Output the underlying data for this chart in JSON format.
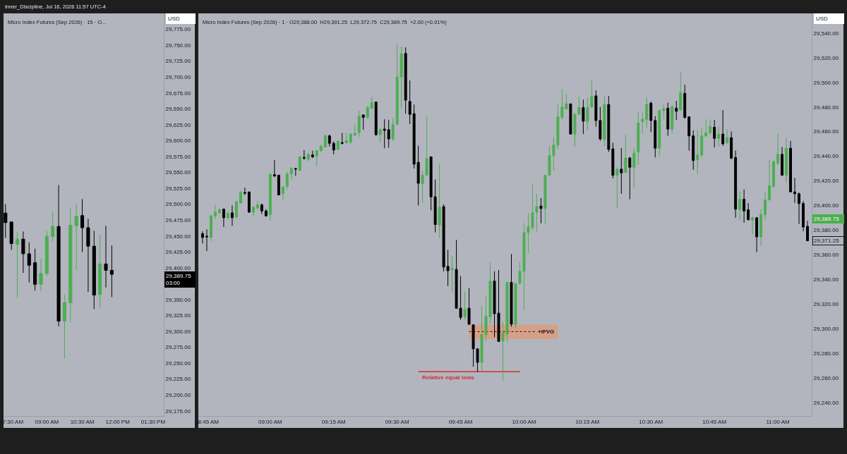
{
  "chart_data": [
    {
      "type": "candlestick",
      "title": "Micro Index Futures (Sep 2026) · 15 · O...",
      "x": [
        "2026-07-16T07:15",
        "2026-07-16T07:30",
        "2026-07-16T07:45",
        "2026-07-16T08:00",
        "2026-07-16T08:15",
        "2026-07-16T08:30",
        "2026-07-16T08:45",
        "2026-07-16T09:00",
        "2026-07-16T09:15",
        "2026-07-16T09:30",
        "2026-07-16T09:45",
        "2026-07-16T10:00",
        "2026-07-16T10:15",
        "2026-07-16T10:30",
        "2026-07-16T10:45",
        "2026-07-16T11:00",
        "2026-07-16T11:15",
        "2026-07-16T11:30",
        "2026-07-16T11:45"
      ],
      "ohlc": [
        [
          29486,
          29500,
          29447,
          29471
        ],
        [
          29472,
          29472,
          29428,
          29438
        ],
        [
          29437,
          29456,
          29353,
          29445
        ],
        [
          29445,
          29457,
          29392,
          29422
        ],
        [
          29422,
          29440,
          29377,
          29404
        ],
        [
          29408,
          29430,
          29364,
          29374
        ],
        [
          29374,
          29414,
          29363,
          29391
        ],
        [
          29391,
          29458,
          29387,
          29449
        ],
        [
          29449,
          29488,
          29442,
          29465
        ],
        [
          29465,
          29530,
          29308,
          29316
        ],
        [
          29316,
          29358,
          29257,
          29345
        ],
        [
          29345,
          29494,
          29314,
          29467
        ],
        [
          29466,
          29500,
          29397,
          29481
        ],
        [
          29482,
          29508,
          29425,
          29463
        ],
        [
          29463,
          29477,
          29362,
          29434
        ],
        [
          29434,
          29458,
          29335,
          29357
        ],
        [
          29358,
          29452,
          29336,
          29406
        ],
        [
          29406,
          29466,
          29369,
          29396
        ],
        [
          29396,
          29435,
          29354,
          29389.75
        ]
      ],
      "colors": [
        "#000000",
        "#000000",
        "#4caf50",
        "#000000",
        "#000000",
        "#000000",
        "#4caf50",
        "#4caf50",
        "#4caf50",
        "#000000",
        "#4caf50",
        "#4caf50",
        "#4caf50",
        "#000000",
        "#000000",
        "#000000",
        "#4caf50",
        "#000000",
        "#000000"
      ],
      "xlim": [
        "2026-07-16T07:10",
        "2026-07-16T13:57"
      ],
      "xticks": [
        {
          "value": "2026-07-16T07:30",
          "label": "07:30 AM"
        },
        {
          "value": "2026-07-16T09:00",
          "label": "09:00 AM"
        },
        {
          "value": "2026-07-16T10:30",
          "label": "10:30 AM"
        },
        {
          "value": "2026-07-16T12:00",
          "label": "12:00 PM"
        },
        {
          "value": "2026-07-16T13:30",
          "label": "01:30 PM"
        }
      ],
      "ylim": [
        29167,
        29800
      ],
      "yticks": [
        {
          "value": 29175,
          "label": "29,175.00"
        },
        {
          "value": 29200,
          "label": "29,200.00"
        },
        {
          "value": 29225,
          "label": "29,225.00"
        },
        {
          "value": 29250,
          "label": "29,250.00"
        },
        {
          "value": 29275,
          "label": "29,275.00"
        },
        {
          "value": 29300,
          "label": "29,300.00"
        },
        {
          "value": 29325,
          "label": "29,325.00"
        },
        {
          "value": 29350,
          "label": "29,350.00"
        },
        {
          "value": 29400,
          "label": "29,400.00"
        },
        {
          "value": 29425,
          "label": "29,425.00"
        },
        {
          "value": 29450,
          "label": "29,450.00"
        },
        {
          "value": 29475,
          "label": "29,475.00"
        },
        {
          "value": 29500,
          "label": "29,500.00"
        },
        {
          "value": 29525,
          "label": "29,525.00"
        },
        {
          "value": 29550,
          "label": "29,550.00"
        },
        {
          "value": 29575,
          "label": "29,575.00"
        },
        {
          "value": 29600,
          "label": "29,600.00"
        },
        {
          "value": 29625,
          "label": "29,625.00"
        },
        {
          "value": 29650,
          "label": "29,650.00"
        },
        {
          "value": 29675,
          "label": "29,675.00"
        },
        {
          "value": 29700,
          "label": "29,700.00"
        },
        {
          "value": 29725,
          "label": "29,725.00"
        },
        {
          "value": 29750,
          "label": "29,750.00"
        },
        {
          "value": 29775,
          "label": "29,775.00"
        }
      ],
      "annotations": [
        "Inner_Discipline, Jul 16, 2026 11:57 UTC-4",
        "USD",
        "29,389.75\n03:00"
      ]
    },
    {
      "type": "candlestick",
      "title": "Micro Index Futures (Sep 2026) · 1 · O29,388.00  H29,391.25  L29,372.75  C29,389.75  +2.00 (+0.01%)",
      "x": [
        "2026-07-16T08:44",
        "2026-07-16T08:45",
        "2026-07-16T08:46",
        "2026-07-16T08:47",
        "2026-07-16T08:48",
        "2026-07-16T08:49",
        "2026-07-16T08:50",
        "2026-07-16T08:51",
        "2026-07-16T08:52",
        "2026-07-16T08:53",
        "2026-07-16T08:54",
        "2026-07-16T08:55",
        "2026-07-16T08:56",
        "2026-07-16T08:57",
        "2026-07-16T08:58",
        "2026-07-16T08:59",
        "2026-07-16T09:00",
        "2026-07-16T09:01",
        "2026-07-16T09:02",
        "2026-07-16T09:03",
        "2026-07-16T09:04",
        "2026-07-16T09:05",
        "2026-07-16T09:06",
        "2026-07-16T09:07",
        "2026-07-16T09:08",
        "2026-07-16T09:09",
        "2026-07-16T09:10",
        "2026-07-16T09:11",
        "2026-07-16T09:12",
        "2026-07-16T09:13",
        "2026-07-16T09:14",
        "2026-07-16T09:15",
        "2026-07-16T09:16",
        "2026-07-16T09:17",
        "2026-07-16T09:18",
        "2026-07-16T09:19",
        "2026-07-16T09:20",
        "2026-07-16T09:21",
        "2026-07-16T09:22",
        "2026-07-16T09:23",
        "2026-07-16T09:24",
        "2026-07-16T09:25",
        "2026-07-16T09:26",
        "2026-07-16T09:27",
        "2026-07-16T09:28",
        "2026-07-16T09:29",
        "2026-07-16T09:30",
        "2026-07-16T09:31",
        "2026-07-16T09:32",
        "2026-07-16T09:33",
        "2026-07-16T09:34",
        "2026-07-16T09:35",
        "2026-07-16T09:36",
        "2026-07-16T09:37",
        "2026-07-16T09:38",
        "2026-07-16T09:39",
        "2026-07-16T09:40",
        "2026-07-16T09:41",
        "2026-07-16T09:42",
        "2026-07-16T09:43",
        "2026-07-16T09:44",
        "2026-07-16T09:45",
        "2026-07-16T09:46",
        "2026-07-16T09:47",
        "2026-07-16T09:48",
        "2026-07-16T09:49",
        "2026-07-16T09:50",
        "2026-07-16T09:51",
        "2026-07-16T09:52",
        "2026-07-16T09:53",
        "2026-07-16T09:54",
        "2026-07-16T09:55",
        "2026-07-16T09:56",
        "2026-07-16T09:57",
        "2026-07-16T09:58",
        "2026-07-16T09:59",
        "2026-07-16T10:00",
        "2026-07-16T10:01",
        "2026-07-16T10:02",
        "2026-07-16T10:03",
        "2026-07-16T10:04",
        "2026-07-16T10:05",
        "2026-07-16T10:06",
        "2026-07-16T10:07",
        "2026-07-16T10:08",
        "2026-07-16T10:09",
        "2026-07-16T10:10",
        "2026-07-16T10:11",
        "2026-07-16T10:12",
        "2026-07-16T10:13",
        "2026-07-16T10:14",
        "2026-07-16T10:15",
        "2026-07-16T10:16",
        "2026-07-16T10:17",
        "2026-07-16T10:18",
        "2026-07-16T10:19",
        "2026-07-16T10:20",
        "2026-07-16T10:21",
        "2026-07-16T10:22",
        "2026-07-16T10:23",
        "2026-07-16T10:24",
        "2026-07-16T10:25",
        "2026-07-16T10:26",
        "2026-07-16T10:27",
        "2026-07-16T10:28",
        "2026-07-16T10:29",
        "2026-07-16T10:30",
        "2026-07-16T10:31",
        "2026-07-16T10:32",
        "2026-07-16T10:33",
        "2026-07-16T10:34",
        "2026-07-16T10:35",
        "2026-07-16T10:36",
        "2026-07-16T10:37",
        "2026-07-16T10:38",
        "2026-07-16T10:39",
        "2026-07-16T10:40",
        "2026-07-16T10:41",
        "2026-07-16T10:42",
        "2026-07-16T10:43",
        "2026-07-16T10:44",
        "2026-07-16T10:45",
        "2026-07-16T10:46",
        "2026-07-16T10:47",
        "2026-07-16T10:48",
        "2026-07-16T10:49",
        "2026-07-16T10:50",
        "2026-07-16T10:51",
        "2026-07-16T10:52",
        "2026-07-16T10:53",
        "2026-07-16T10:54",
        "2026-07-16T10:55",
        "2026-07-16T10:56",
        "2026-07-16T10:57",
        "2026-07-16T10:58",
        "2026-07-16T10:59",
        "2026-07-16T11:00",
        "2026-07-16T11:01",
        "2026-07-16T11:02",
        "2026-07-16T11:03",
        "2026-07-16T11:04",
        "2026-07-16T11:05",
        "2026-07-16T11:06",
        "2026-07-16T11:07"
      ],
      "ohlc": [
        [
          29377,
          29379,
          29369,
          29374
        ],
        [
          29375,
          29380.5,
          29363,
          29374.5
        ],
        [
          29374,
          29392.5,
          29371,
          29391.5
        ],
        [
          29391.5,
          29400.5,
          29389,
          29394.5
        ],
        [
          29394,
          29397.5,
          29393,
          29396.5
        ],
        [
          29397,
          29397.5,
          29382.5,
          29390
        ],
        [
          29390,
          29395,
          29388.5,
          29393.5
        ],
        [
          29394,
          29400,
          29383.5,
          29390
        ],
        [
          29390.5,
          29403.5,
          29390,
          29403
        ],
        [
          29402,
          29412,
          29401.5,
          29410.5
        ],
        [
          29410.5,
          29414.5,
          29408.5,
          29410
        ],
        [
          29411,
          29411,
          29394,
          29394.5
        ],
        [
          29394.5,
          29399.5,
          29391,
          29398.5
        ],
        [
          29398,
          29404,
          29396.5,
          29400.5
        ],
        [
          29400.5,
          29401.5,
          29393,
          29395.5
        ],
        [
          29395.5,
          29397,
          29391,
          29391.5
        ],
        [
          29392.5,
          29425.5,
          29387.5,
          29425.5
        ],
        [
          29425,
          29437,
          29423,
          29424
        ],
        [
          29424.5,
          29425,
          29408.5,
          29408.5
        ],
        [
          29409.5,
          29415.5,
          29404,
          29415
        ],
        [
          29415.5,
          29427.5,
          29413,
          29425.5
        ],
        [
          29425.5,
          29431,
          29421,
          29430
        ],
        [
          29430,
          29430.5,
          29424,
          29429.5
        ],
        [
          29428.5,
          29440,
          29428,
          29439.5
        ],
        [
          29439,
          29445,
          29437,
          29438.5
        ],
        [
          29437.5,
          29442.5,
          29435.5,
          29441.5
        ],
        [
          29441,
          29444.5,
          29438.5,
          29439.5
        ],
        [
          29440,
          29445,
          29431.5,
          29444.5
        ],
        [
          29444.5,
          29449.5,
          29443.5,
          29448
        ],
        [
          29447.5,
          29457.5,
          29447,
          29456.5
        ],
        [
          29456.5,
          29457.5,
          29448,
          29450.5
        ],
        [
          29450.5,
          29452,
          29441.5,
          29445
        ],
        [
          29445.5,
          29453,
          29445,
          29452
        ],
        [
          29451,
          29459,
          29449.5,
          29450.5
        ],
        [
          29451,
          29459,
          29450,
          29452.5
        ],
        [
          29451.5,
          29458.5,
          29449.5,
          29458
        ],
        [
          29457,
          29465.5,
          29456.5,
          29458.5
        ],
        [
          29459,
          29477,
          29455.5,
          29472.5
        ],
        [
          29473.5,
          29474,
          29461.5,
          29471.5
        ],
        [
          29471.5,
          29481,
          29470.5,
          29479.5
        ],
        [
          29479,
          29488,
          29478,
          29483.5
        ],
        [
          29484,
          29484,
          29456.5,
          29457.5
        ],
        [
          29457.5,
          29463,
          29451,
          29461.5
        ],
        [
          29462,
          29470,
          29446.5,
          29461
        ],
        [
          29461.5,
          29469.5,
          29447,
          29454
        ],
        [
          29454,
          29471,
          29452.5,
          29465.5
        ],
        [
          29466,
          29531.5,
          29465.5,
          29504.5
        ],
        [
          29504.5,
          29529,
          29479,
          29523
        ],
        [
          29523.5,
          29528.5,
          29474.5,
          29485.5
        ],
        [
          29484.5,
          29501.5,
          29466,
          29474
        ],
        [
          29474.5,
          29482,
          29430,
          29433.5
        ],
        [
          29435,
          29448.5,
          29400,
          29418
        ],
        [
          29417.5,
          29428,
          29402,
          29424.5
        ],
        [
          29424.5,
          29472.5,
          29424.5,
          29438
        ],
        [
          29439.5,
          29439.5,
          29396,
          29407
        ],
        [
          29407,
          29421,
          29378,
          29384.5
        ],
        [
          29384,
          29433.5,
          29373.5,
          29398.5
        ],
        [
          29399,
          29401,
          29346.5,
          29350
        ],
        [
          29350.5,
          29364,
          29334.5,
          29347
        ],
        [
          29348,
          29359,
          29329.5,
          29349
        ],
        [
          29348,
          29372,
          29316,
          29316.5
        ],
        [
          29316.5,
          29342.5,
          29307,
          29309
        ],
        [
          29309.5,
          29330,
          29307,
          29315.5
        ],
        [
          29316.5,
          29333,
          29303,
          29303.5
        ],
        [
          29303,
          29303,
          29269,
          29283.5
        ],
        [
          29283.5,
          29283.5,
          29265,
          29272.5
        ],
        [
          29272.5,
          29318.5,
          29265,
          29295
        ],
        [
          29295,
          29327,
          29289.5,
          29310
        ],
        [
          29309.5,
          29353.5,
          29304,
          29338.5
        ],
        [
          29338.5,
          29346.5,
          29293,
          29312
        ],
        [
          29312.5,
          29347.5,
          29289,
          29289.5
        ],
        [
          29290,
          29305.5,
          29257.5,
          29296.5
        ],
        [
          29295.5,
          29337.5,
          29289,
          29337.5
        ],
        [
          29337.5,
          29360.5,
          29301.5,
          29303.5
        ],
        [
          29303.5,
          29337,
          29300,
          29336.5
        ],
        [
          29337,
          29354,
          29335.5,
          29346.5
        ],
        [
          29346.5,
          29385.5,
          29315,
          29378
        ],
        [
          29378,
          29394,
          29361.5,
          29382.5
        ],
        [
          29382,
          29417.5,
          29380,
          29394
        ],
        [
          29394.5,
          29409.5,
          29379,
          29399
        ],
        [
          29399.5,
          29406,
          29385.5,
          29397.5
        ],
        [
          29397.5,
          29424.5,
          29384.5,
          29424.5
        ],
        [
          29424.5,
          29448,
          29424,
          29440.5
        ],
        [
          29440.5,
          29455.5,
          29428,
          29449
        ],
        [
          29449,
          29482,
          29446,
          29472
        ],
        [
          29471.5,
          29494.5,
          29469.5,
          29480
        ],
        [
          29478.5,
          29490.5,
          29478,
          29482.5
        ],
        [
          29482.5,
          29482.5,
          29458,
          29458
        ],
        [
          29458,
          29475,
          29447.5,
          29474
        ],
        [
          29474,
          29488.5,
          29473.5,
          29479.5
        ],
        [
          29479.5,
          29486,
          29458,
          29468.5
        ],
        [
          29468,
          29487.5,
          29461,
          29479.5
        ],
        [
          29480,
          29501.5,
          29479.5,
          29488.5
        ],
        [
          29489,
          29493.5,
          29464,
          29469
        ],
        [
          29469,
          29480,
          29452.5,
          29454
        ],
        [
          29453.5,
          29489.5,
          29448,
          29482
        ],
        [
          29482,
          29489,
          29443.5,
          29445.5
        ],
        [
          29446,
          29451,
          29422,
          29424.5
        ],
        [
          29424.5,
          29431,
          29397.5,
          29429.5
        ],
        [
          29429.5,
          29446.5,
          29409.5,
          29426.5
        ],
        [
          29427,
          29457.5,
          29426,
          29438.5
        ],
        [
          29438.5,
          29439.5,
          29405,
          29431
        ],
        [
          29431,
          29447,
          29414,
          29442.5
        ],
        [
          29443.5,
          29475.5,
          29433,
          29467
        ],
        [
          29468,
          29475.5,
          29458.5,
          29470
        ],
        [
          29470,
          29487.5,
          29463,
          29482
        ],
        [
          29483,
          29484.5,
          29459.5,
          29469
        ],
        [
          29469,
          29472.5,
          29439,
          29446.5
        ],
        [
          29446.5,
          29478,
          29440,
          29477
        ],
        [
          29477,
          29482,
          29470,
          29478.5
        ],
        [
          29479,
          29483.5,
          29456.5,
          29462
        ],
        [
          29462,
          29481.5,
          29458.5,
          29480
        ],
        [
          29479,
          29485,
          29469.5,
          29476.5
        ],
        [
          29477.5,
          29508,
          29477,
          29491.5
        ],
        [
          29491,
          29498,
          29470.5,
          29471.5
        ],
        [
          29472,
          29472,
          29444.5,
          29456.5
        ],
        [
          29456.5,
          29461,
          29429,
          29436.5
        ],
        [
          29437,
          29461,
          29425.5,
          29441
        ],
        [
          29441,
          29463,
          29439,
          29456.5
        ],
        [
          29456.5,
          29470,
          29455.5,
          29459
        ],
        [
          29459,
          29469.5,
          29457.5,
          29464
        ],
        [
          29463.5,
          29469.5,
          29447,
          29454.5
        ],
        [
          29454.5,
          29464,
          29448,
          29458
        ],
        [
          29458,
          29477.5,
          29448.5,
          29450
        ],
        [
          29451,
          29462,
          29450,
          29455
        ],
        [
          29455,
          29460,
          29437.5,
          29438.5
        ],
        [
          29439,
          29444.5,
          29390,
          29397
        ],
        [
          29396.5,
          29411.5,
          29388,
          29405
        ],
        [
          29405,
          29413,
          29386,
          29395.5
        ],
        [
          29396.5,
          29402,
          29387.5,
          29388.5
        ],
        [
          29388,
          29391,
          29376.5,
          29390
        ],
        [
          29390,
          29390.5,
          29362,
          29374.5
        ],
        [
          29374.5,
          29397,
          29367,
          29392.5
        ],
        [
          29392.5,
          29411,
          29388.5,
          29404.5
        ],
        [
          29404.5,
          29437,
          29404,
          29416
        ],
        [
          29415.5,
          29436.5,
          29414.5,
          29435.5
        ],
        [
          29434.5,
          29458.5,
          29432.5,
          29441.5
        ],
        [
          29441.5,
          29447.5,
          29424.5,
          29424.5
        ],
        [
          29424.5,
          29455,
          29418.5,
          29446.5
        ],
        [
          29446.5,
          29452.5,
          29411,
          29411
        ],
        [
          29411,
          29422.5,
          29402,
          29409.5
        ],
        [
          29409.5,
          29410.5,
          29385,
          29401.5
        ],
        [
          29401.5,
          29403.5,
          29379,
          29382.5
        ],
        [
          29383,
          29387.5,
          29371,
          29371.25
        ]
      ],
      "colors": [
        "#000000",
        "#000000",
        "#4caf50",
        "#4caf50",
        "#4caf50",
        "#000000",
        "#4caf50",
        "#000000",
        "#4caf50",
        "#4caf50",
        "#000000",
        "#000000",
        "#4caf50",
        "#4caf50",
        "#000000",
        "#000000",
        "#4caf50",
        "#000000",
        "#000000",
        "#4caf50",
        "#4caf50",
        "#4caf50",
        "#000000",
        "#4caf50",
        "#000000",
        "#4caf50",
        "#000000",
        "#4caf50",
        "#4caf50",
        "#4caf50",
        "#000000",
        "#000000",
        "#4caf50",
        "#000000",
        "#4caf50",
        "#4caf50",
        "#4caf50",
        "#4caf50",
        "#000000",
        "#4caf50",
        "#4caf50",
        "#000000",
        "#4caf50",
        "#000000",
        "#000000",
        "#4caf50",
        "#4caf50",
        "#4caf50",
        "#000000",
        "#000000",
        "#000000",
        "#000000",
        "#4caf50",
        "#4caf50",
        "#000000",
        "#000000",
        "#4caf50",
        "#000000",
        "#000000",
        "#4caf50",
        "#000000",
        "#000000",
        "#4caf50",
        "#000000",
        "#000000",
        "#000000",
        "#4caf50",
        "#4caf50",
        "#4caf50",
        "#000000",
        "#000000",
        "#4caf50",
        "#4caf50",
        "#000000",
        "#4caf50",
        "#4caf50",
        "#4caf50",
        "#4caf50",
        "#4caf50",
        "#4caf50",
        "#000000",
        "#4caf50",
        "#4caf50",
        "#4caf50",
        "#4caf50",
        "#4caf50",
        "#4caf50",
        "#000000",
        "#4caf50",
        "#4caf50",
        "#000000",
        "#4caf50",
        "#4caf50",
        "#000000",
        "#000000",
        "#4caf50",
        "#000000",
        "#000000",
        "#4caf50",
        "#000000",
        "#4caf50",
        "#000000",
        "#4caf50",
        "#4caf50",
        "#4caf50",
        "#4caf50",
        "#000000",
        "#000000",
        "#4caf50",
        "#4caf50",
        "#000000",
        "#4caf50",
        "#000000",
        "#4caf50",
        "#000000",
        "#000000",
        "#000000",
        "#4caf50",
        "#4caf50",
        "#4caf50",
        "#4caf50",
        "#000000",
        "#4caf50",
        "#000000",
        "#4caf50",
        "#000000",
        "#000000",
        "#4caf50",
        "#000000",
        "#000000",
        "#4caf50",
        "#000000",
        "#4caf50",
        "#4caf50",
        "#4caf50",
        "#4caf50",
        "#4caf50",
        "#000000",
        "#4caf50",
        "#000000",
        "#000000",
        "#000000",
        "#000000",
        "#000000"
      ],
      "series": [
        {
          "type": "line",
          "name": "+IFVG",
          "color": "#131722",
          "line_style": "dotted",
          "x": [
            "2026-07-16T09:47",
            "2026-07-16T10:03",
            "2026-07-16T10:08"
          ],
          "values": [
            29297.5,
            29297.5,
            null
          ],
          "lower": [
            29291.5,
            29291.5,
            29291.5
          ],
          "upper": [
            29303,
            29303,
            29303
          ]
        },
        {
          "type": "line",
          "name": "Relative equal lows",
          "color": "#d32f2f",
          "x": [
            "2026-07-16T09:35",
            "2026-07-16T09:59"
          ],
          "values": [
            29265,
            29265
          ]
        }
      ],
      "xlim": [
        "2026-07-16T08:43",
        "2026-07-16T11:08"
      ],
      "xticks": [
        {
          "value": "2026-07-16T08:45",
          "label": "08:45 AM"
        },
        {
          "value": "2026-07-16T09:00",
          "label": "09:00 AM"
        },
        {
          "value": "2026-07-16T09:15",
          "label": "09:15 AM"
        },
        {
          "value": "2026-07-16T09:30",
          "label": "09:30 AM"
        },
        {
          "value": "2026-07-16T09:45",
          "label": "09:45 AM"
        },
        {
          "value": "2026-07-16T10:00",
          "label": "10:00 AM"
        },
        {
          "value": "2026-07-16T10:15",
          "label": "10:15 AM"
        },
        {
          "value": "2026-07-16T10:30",
          "label": "10:30 AM"
        },
        {
          "value": "2026-07-16T10:45",
          "label": "10:45 AM"
        },
        {
          "value": "2026-07-16T11:00",
          "label": "11:00 AM"
        }
      ],
      "ylim": [
        29229,
        29556
      ],
      "yticks": [
        {
          "value": 29240,
          "label": "29,240.00"
        },
        {
          "value": 29260,
          "label": "29,260.00"
        },
        {
          "value": 29280,
          "label": "29,280.00"
        },
        {
          "value": 29300,
          "label": "29,300.00"
        },
        {
          "value": 29320,
          "label": "29,320.00"
        },
        {
          "value": 29340,
          "label": "29,340.00"
        },
        {
          "value": 29360,
          "label": "29,360.00"
        },
        {
          "value": 29380,
          "label": "29,380.00"
        },
        {
          "value": 29400,
          "label": "29,400.00"
        },
        {
          "value": 29420,
          "label": "29,420.00"
        },
        {
          "value": 29440,
          "label": "29,440.00"
        },
        {
          "value": 29460,
          "label": "29,460.00"
        },
        {
          "value": 29480,
          "label": "29,480.00"
        },
        {
          "value": 29500,
          "label": "29,500.00"
        },
        {
          "value": 29520,
          "label": "29,520.00"
        },
        {
          "value": 29540,
          "label": "29,540.00"
        }
      ],
      "annotations": [
        "USD",
        "29,389.75",
        "29,371.25"
      ]
    }
  ]
}
